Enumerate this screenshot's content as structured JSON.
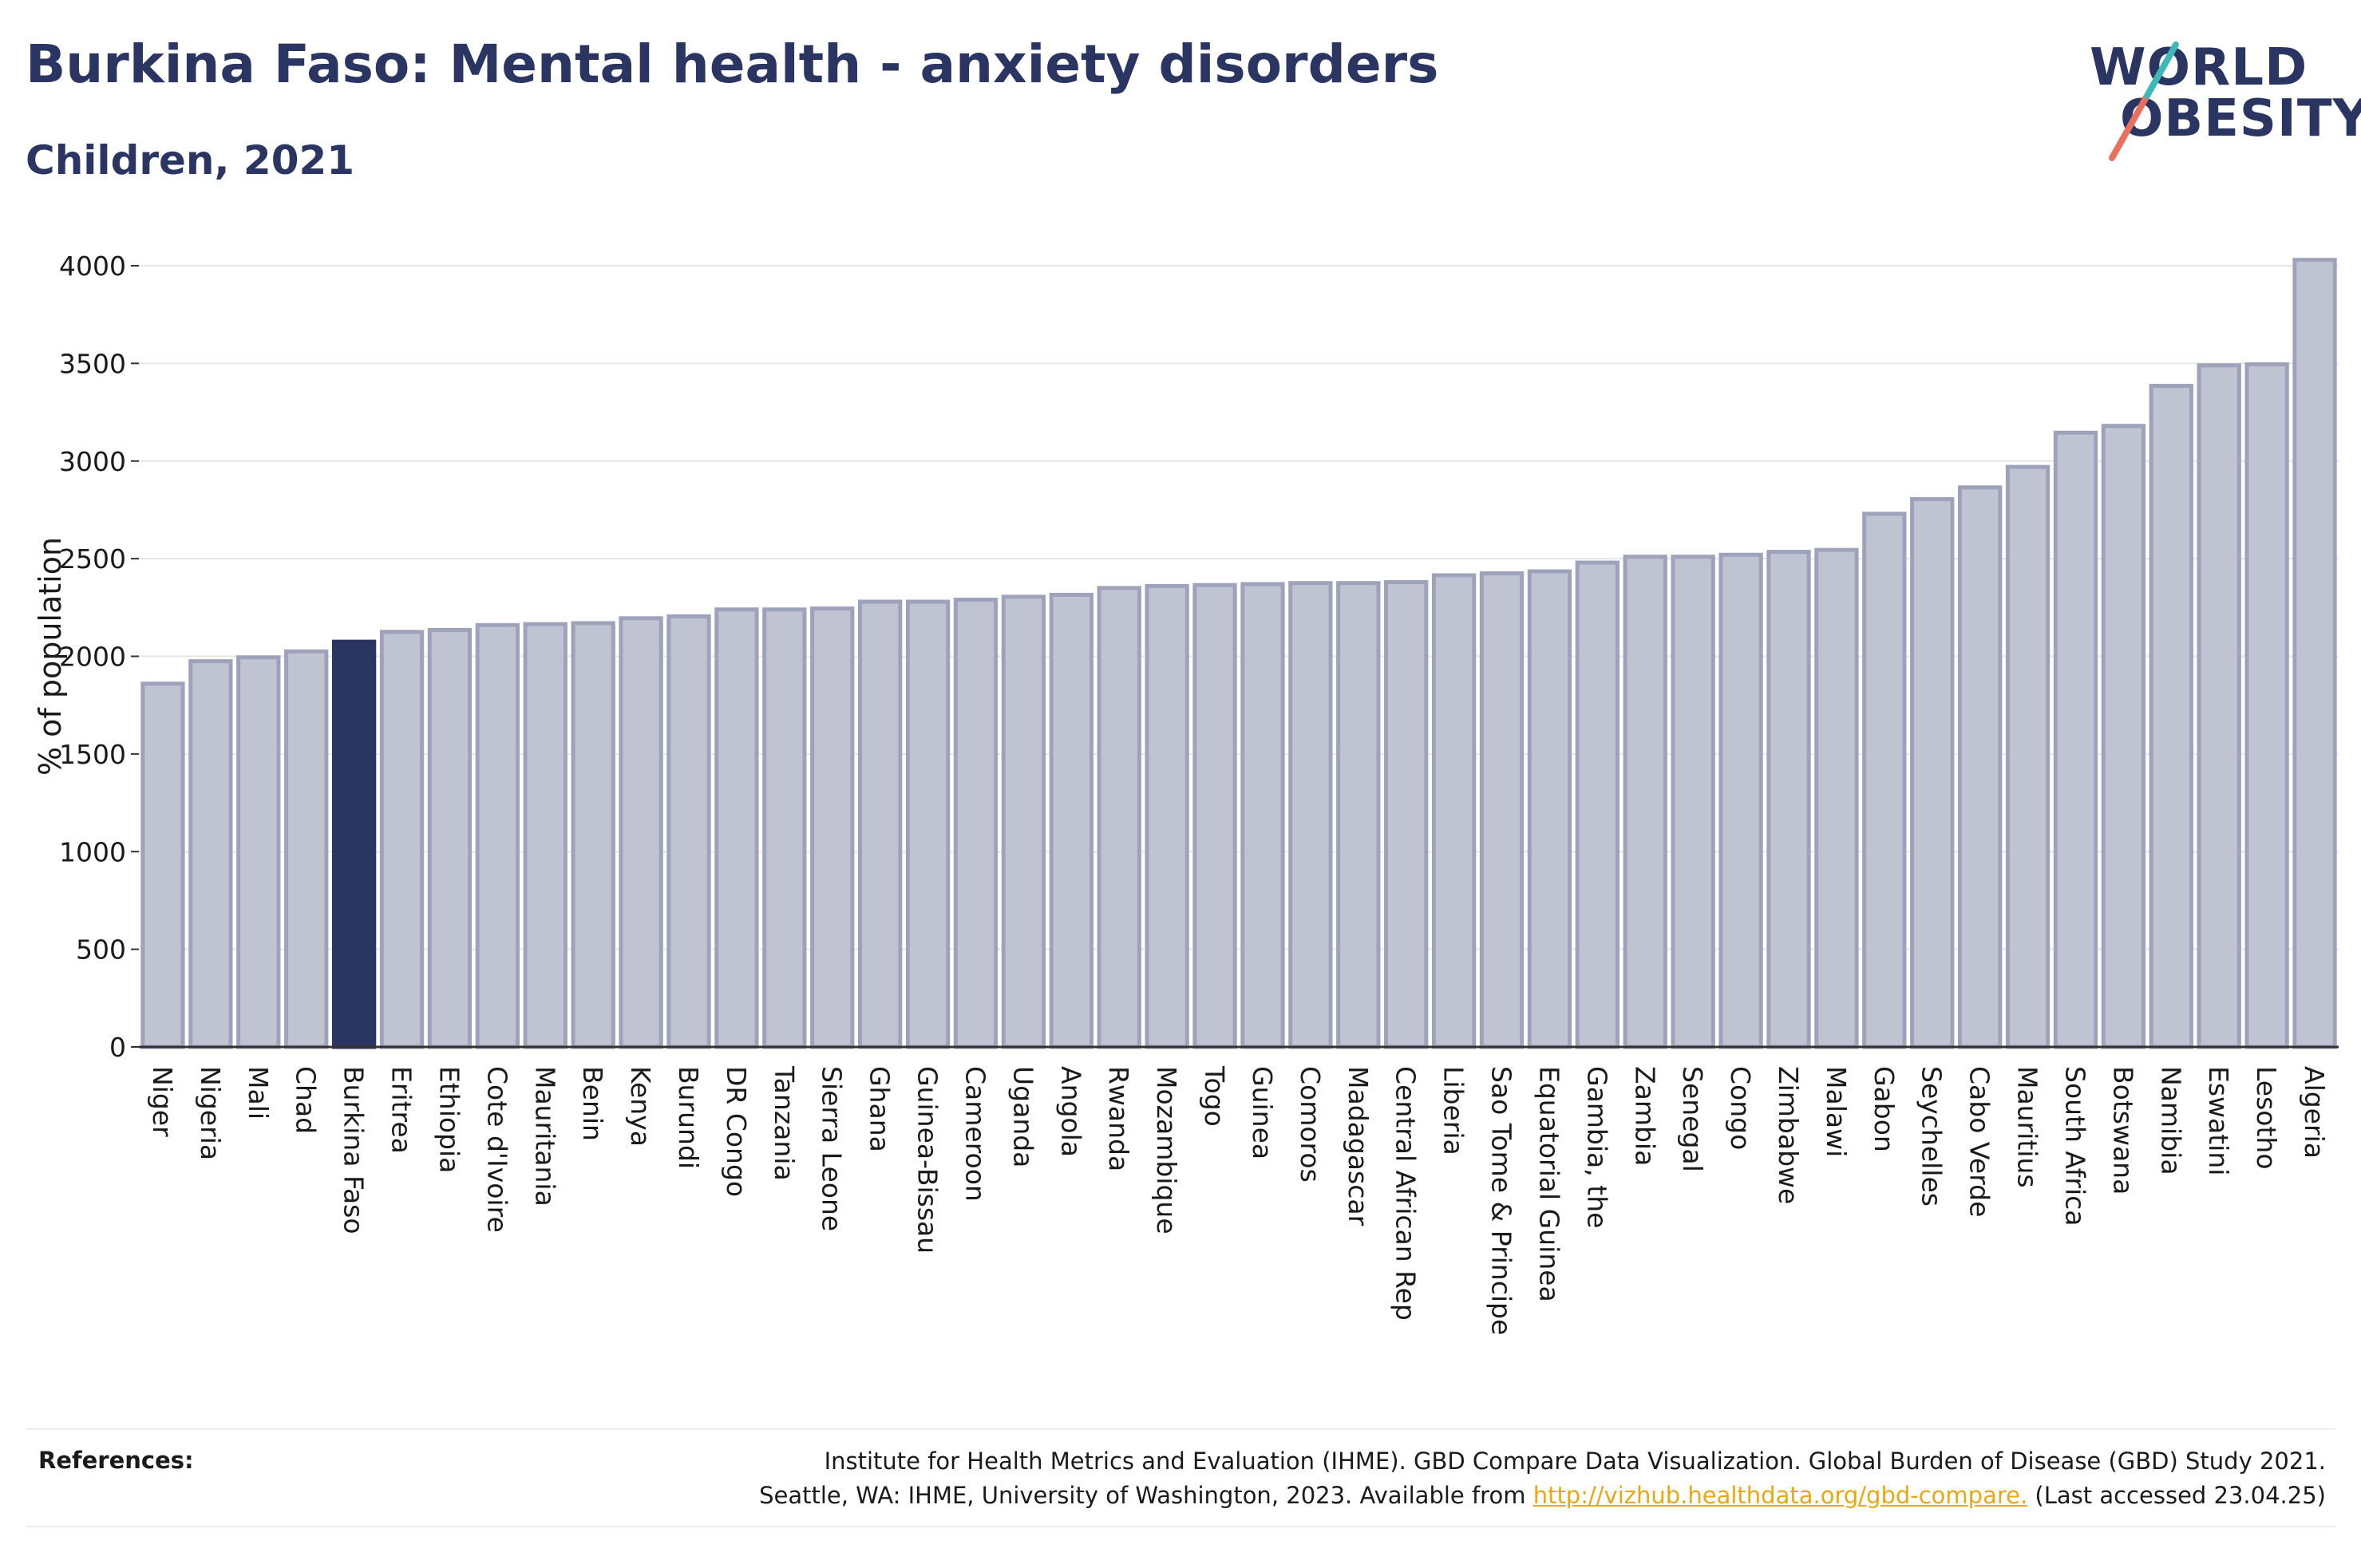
{
  "header": {
    "title": "Burkina Faso: Mental health - anxiety disorders",
    "subtitle": "Children, 2021"
  },
  "logo": {
    "line1": "WORLD",
    "line2": "OBESITY",
    "slash_colors": [
      "#e8705f",
      "#3fb8b8"
    ]
  },
  "colors": {
    "bar": "#c0c3d2",
    "bar_stroke": "#9ea3bb",
    "highlight": "#2b3561",
    "grid": "#e6e6e6",
    "axis": "#333333"
  },
  "chart_data": {
    "type": "bar",
    "ylabel": "% of population",
    "xlabel": "",
    "ylim": [
      0,
      4100
    ],
    "yticks": [
      0,
      500,
      1000,
      1500,
      2000,
      2500,
      3000,
      3500,
      4000
    ],
    "grid": true,
    "highlight": "Burkina Faso",
    "categories": [
      "Niger",
      "Nigeria",
      "Mali",
      "Chad",
      "Burkina Faso",
      "Eritrea",
      "Ethiopia",
      "Cote d'Ivoire",
      "Mauritania",
      "Benin",
      "Kenya",
      "Burundi",
      "DR Congo",
      "Tanzania",
      "Sierra Leone",
      "Ghana",
      "Guinea-Bissau",
      "Cameroon",
      "Uganda",
      "Angola",
      "Rwanda",
      "Mozambique",
      "Togo",
      "Guinea",
      "Comoros",
      "Madagascar",
      "Central African Rep",
      "Liberia",
      "Sao Tome & Principe",
      "Equatorial Guinea",
      "Gambia, the",
      "Zambia",
      "Senegal",
      "Congo",
      "Zimbabwe",
      "Malawi",
      "Gabon",
      "Seychelles",
      "Cabo Verde",
      "Mauritius",
      "South Africa",
      "Botswana",
      "Namibia",
      "Eswatini",
      "Lesotho",
      "Algeria"
    ],
    "values": [
      1860,
      1975,
      1995,
      2025,
      2075,
      2125,
      2135,
      2160,
      2165,
      2170,
      2195,
      2205,
      2240,
      2240,
      2245,
      2280,
      2280,
      2290,
      2305,
      2315,
      2350,
      2360,
      2365,
      2370,
      2375,
      2375,
      2380,
      2415,
      2425,
      2435,
      2480,
      2510,
      2510,
      2520,
      2535,
      2545,
      2730,
      2805,
      2865,
      2970,
      3145,
      3180,
      3385,
      3490,
      3495,
      4030
    ]
  },
  "references": {
    "label": "References:",
    "line1": "Institute for Health Metrics and Evaluation (IHME). GBD Compare Data Visualization. Global Burden of Disease (GBD) Study 2021.",
    "line2_before": "Seattle, WA: IHME, University of Washington, 2023. Available from ",
    "link": "http://vizhub.healthdata.org/gbd-compare.",
    "line2_after": " (Last accessed 23.04.25)"
  }
}
